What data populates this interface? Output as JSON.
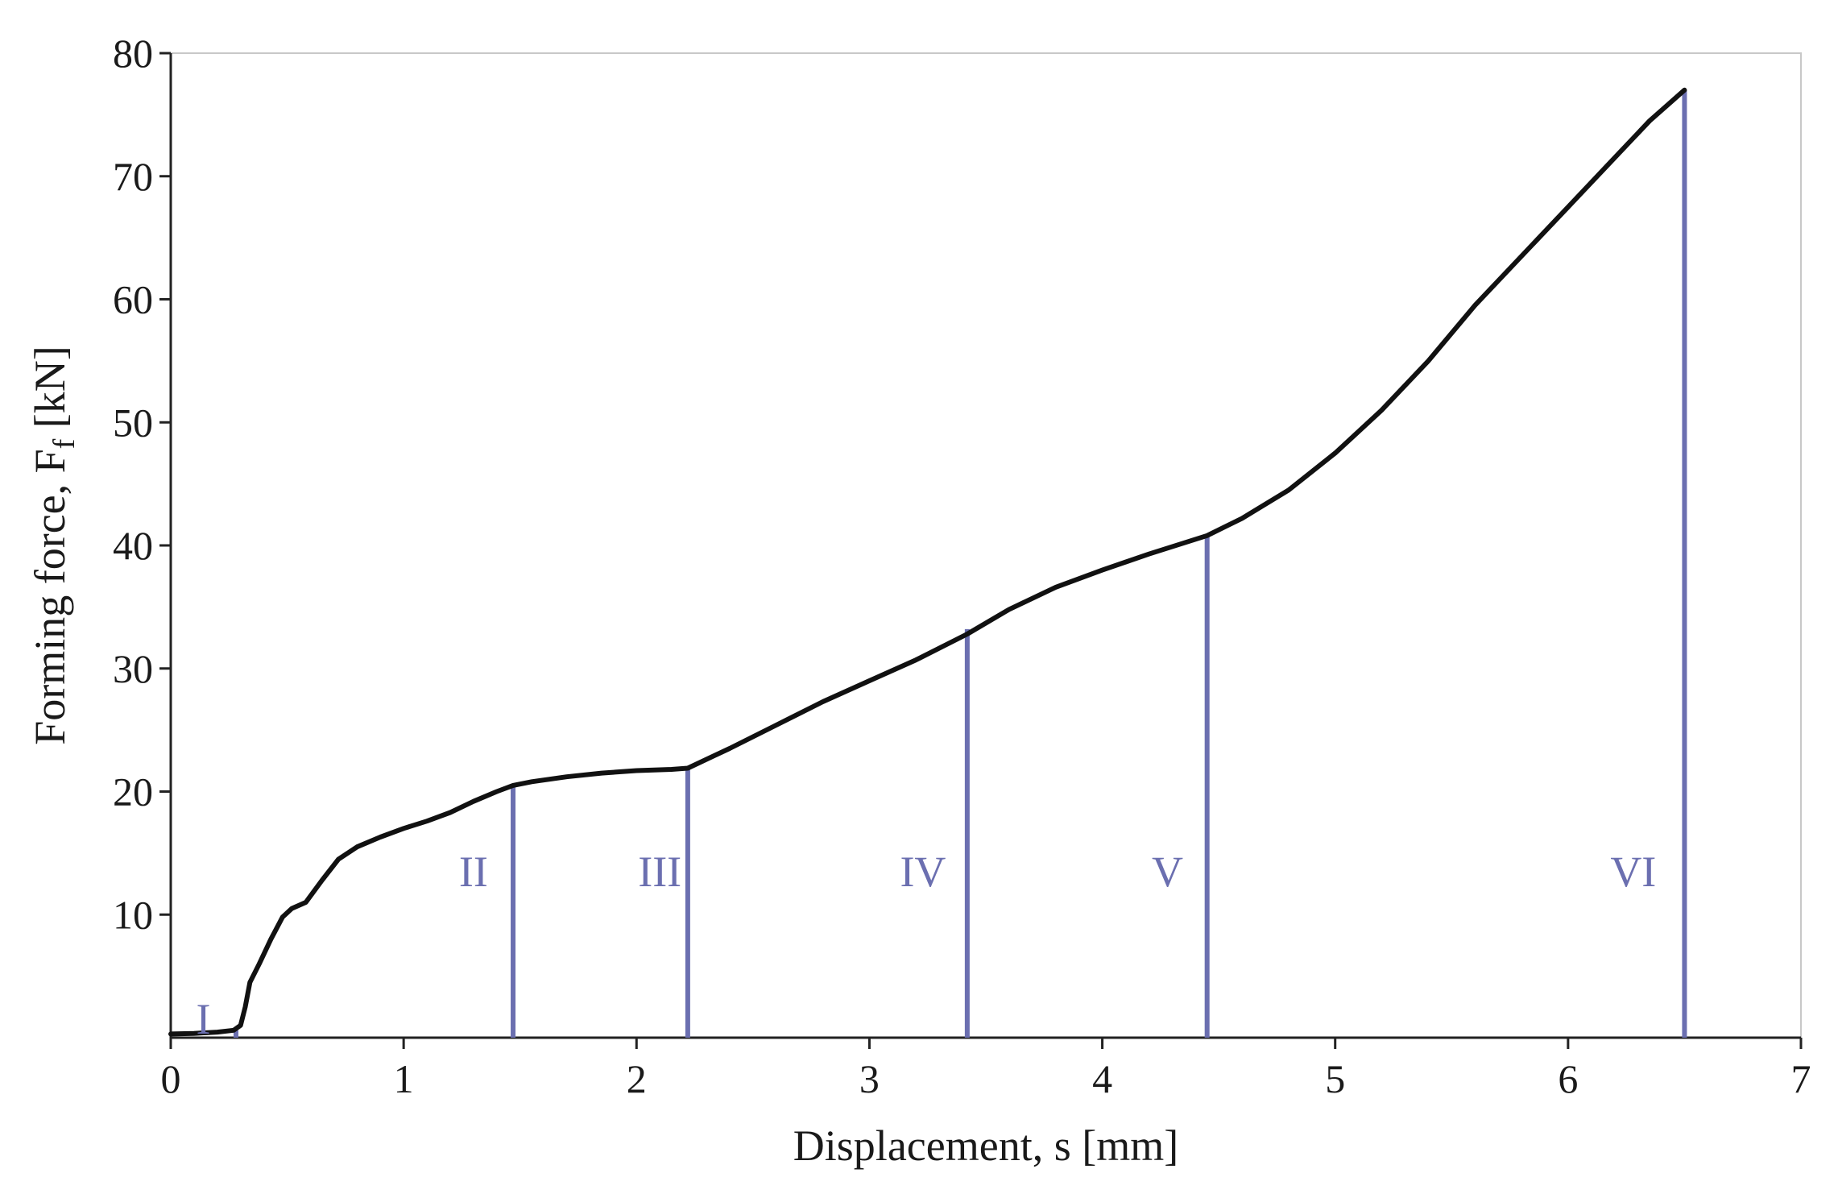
{
  "chart_data": {
    "type": "line",
    "title": "",
    "xlabel": "Displacement, s [mm]",
    "ylabel": "Forming force, F",
    "ylabel_subscript": "f",
    "ylabel_unit": " [kN]",
    "xlim": [
      0,
      7
    ],
    "ylim": [
      0,
      80
    ],
    "x_ticks": [
      {
        "value": 0,
        "label": "0"
      },
      {
        "value": 1,
        "label": "1"
      },
      {
        "value": 2,
        "label": "2"
      },
      {
        "value": 3,
        "label": "3"
      },
      {
        "value": 4,
        "label": "4"
      },
      {
        "value": 5,
        "label": "5"
      },
      {
        "value": 6,
        "label": "6"
      },
      {
        "value": 7,
        "label": "7"
      }
    ],
    "y_ticks": [
      {
        "value": 10,
        "label": "10"
      },
      {
        "value": 20,
        "label": "20"
      },
      {
        "value": 30,
        "label": "30"
      },
      {
        "value": 40,
        "label": "40"
      },
      {
        "value": 50,
        "label": "50"
      },
      {
        "value": 60,
        "label": "60"
      },
      {
        "value": 70,
        "label": "70"
      },
      {
        "value": 80,
        "label": "80"
      }
    ],
    "grid": false,
    "series": [
      {
        "color": "#111111",
        "points": [
          [
            0.0,
            0.3
          ],
          [
            0.1,
            0.35
          ],
          [
            0.2,
            0.45
          ],
          [
            0.27,
            0.6
          ],
          [
            0.3,
            1.0
          ],
          [
            0.32,
            2.5
          ],
          [
            0.34,
            4.5
          ],
          [
            0.38,
            6.0
          ],
          [
            0.43,
            8.0
          ],
          [
            0.48,
            9.8
          ],
          [
            0.52,
            10.5
          ],
          [
            0.58,
            11.0
          ],
          [
            0.65,
            12.8
          ],
          [
            0.72,
            14.5
          ],
          [
            0.8,
            15.5
          ],
          [
            0.9,
            16.3
          ],
          [
            1.0,
            17.0
          ],
          [
            1.1,
            17.6
          ],
          [
            1.2,
            18.3
          ],
          [
            1.3,
            19.2
          ],
          [
            1.4,
            20.0
          ],
          [
            1.47,
            20.5
          ],
          [
            1.55,
            20.8
          ],
          [
            1.7,
            21.2
          ],
          [
            1.85,
            21.5
          ],
          [
            2.0,
            21.7
          ],
          [
            2.15,
            21.8
          ],
          [
            2.22,
            21.9
          ],
          [
            2.4,
            23.5
          ],
          [
            2.6,
            25.4
          ],
          [
            2.8,
            27.3
          ],
          [
            3.0,
            29.0
          ],
          [
            3.2,
            30.7
          ],
          [
            3.42,
            32.8
          ],
          [
            3.6,
            34.8
          ],
          [
            3.8,
            36.6
          ],
          [
            4.0,
            38.0
          ],
          [
            4.2,
            39.3
          ],
          [
            4.45,
            40.8
          ],
          [
            4.6,
            42.2
          ],
          [
            4.8,
            44.5
          ],
          [
            5.0,
            47.5
          ],
          [
            5.2,
            51.0
          ],
          [
            5.4,
            55.0
          ],
          [
            5.6,
            59.5
          ],
          [
            5.8,
            63.5
          ],
          [
            6.0,
            67.5
          ],
          [
            6.2,
            71.5
          ],
          [
            6.35,
            74.5
          ],
          [
            6.5,
            77.0
          ]
        ]
      }
    ],
    "stage_color": "#6b6fb0",
    "stage_lines": [
      {
        "x": 0.28,
        "y": 0.6
      },
      {
        "x": 1.47,
        "y": 20.5
      },
      {
        "x": 2.22,
        "y": 21.9
      },
      {
        "x": 3.42,
        "y": 33.2
      },
      {
        "x": 4.45,
        "y": 40.8
      },
      {
        "x": 6.5,
        "y": 77.0
      }
    ],
    "stage_labels": [
      {
        "label": "I",
        "x": 0.14,
        "y": 1.5
      },
      {
        "label": "II",
        "x": 1.3,
        "y": 13.5
      },
      {
        "label": "III",
        "x": 2.1,
        "y": 13.5
      },
      {
        "label": "IV",
        "x": 3.23,
        "y": 13.5
      },
      {
        "label": "V",
        "x": 4.28,
        "y": 13.5
      },
      {
        "label": "VI",
        "x": 6.28,
        "y": 13.5
      }
    ]
  }
}
